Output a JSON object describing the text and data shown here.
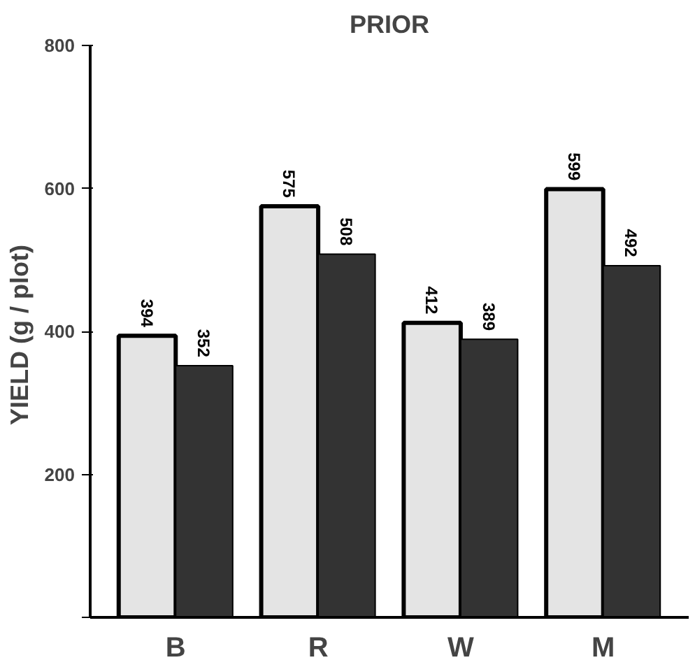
{
  "chart_data": {
    "type": "bar",
    "title": "PRIOR",
    "ylabel": "YIELD  (g / plot)",
    "categories": [
      "B",
      "R",
      "W",
      "M"
    ],
    "series": [
      {
        "color": "#e4e4e4",
        "values": [
          394,
          575,
          412,
          599
        ]
      },
      {
        "color": "#333333",
        "values": [
          352,
          508,
          389,
          492
        ]
      }
    ],
    "ylim": [
      0,
      800
    ],
    "yticks": [
      {
        "value": 0,
        "label": null
      },
      200,
      400,
      600,
      800
    ],
    "data_labels": true,
    "grid": false
  }
}
